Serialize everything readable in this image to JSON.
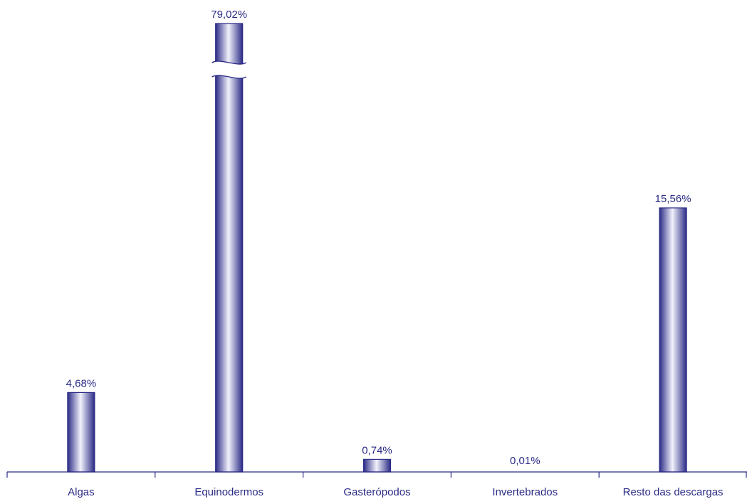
{
  "chart_data": {
    "type": "bar",
    "categories": [
      "Algas",
      "Equinodermos",
      "Gasterópodos",
      "Invertebrados",
      "Resto das descargas"
    ],
    "values": [
      4.68,
      79.02,
      0.74,
      0.01,
      15.56
    ],
    "value_labels": [
      "4,68%",
      "79,02%",
      "0,74%",
      "0,01%",
      "15,56%"
    ],
    "title": "",
    "xlabel": "",
    "ylabel": "",
    "ylim": [
      0,
      80
    ],
    "grid": false,
    "legend": "none",
    "axis_break": true,
    "colors": {
      "bar_dark": "#2b2b86",
      "bar_light": "#f2f2fc",
      "text": "#2b2b86",
      "axis": "#2b2b86"
    }
  }
}
